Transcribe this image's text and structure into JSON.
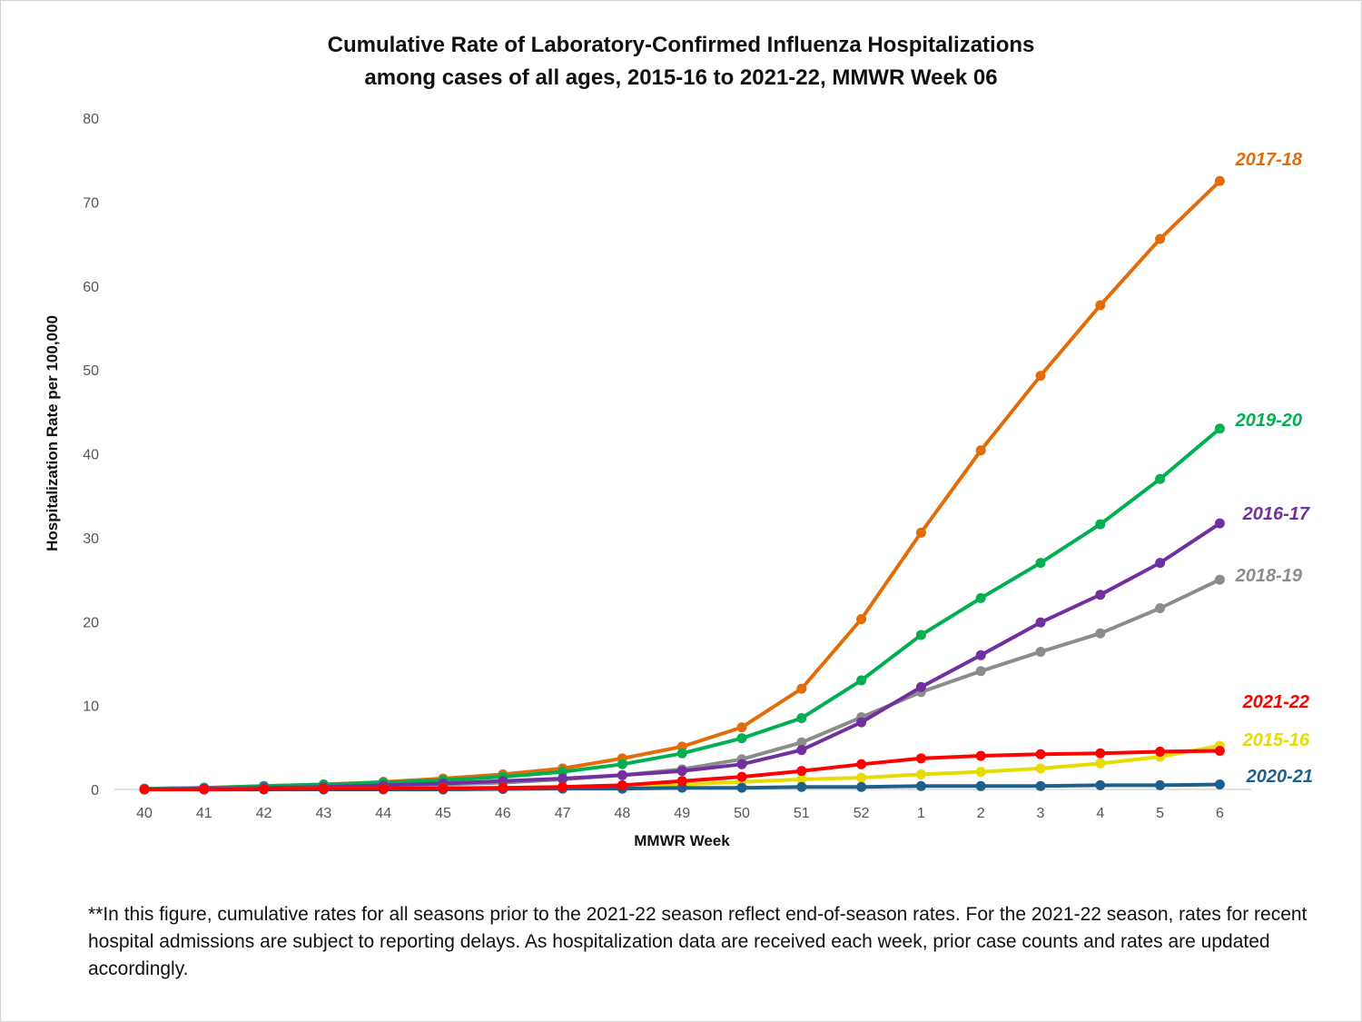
{
  "title_line1": "Cumulative Rate of Laboratory-Confirmed Influenza Hospitalizations",
  "title_line2": "among cases of all ages, 2015-16 to 2021-22, MMWR  Week 06",
  "footnote": "**In this figure, cumulative rates for all seasons prior to the 2021-22 season reflect end-of-season rates. For the 2021-22 season, rates for recent hospital admissions are subject to reporting delays. As hospitalization data are received each week, prior case counts and rates are updated accordingly.",
  "chart_data": {
    "type": "line",
    "title": "Cumulative Rate of Laboratory-Confirmed Influenza Hospitalizations among cases of all ages, 2015-16 to 2021-22, MMWR  Week 06",
    "xlabel": "MMWR Week",
    "ylabel": "Hospitalization  Rate per 100,000",
    "ylim": [
      0,
      80
    ],
    "yticks": [
      "0",
      "10",
      "20",
      "30",
      "40",
      "50",
      "60",
      "70",
      "80"
    ],
    "grid": false,
    "legend": "inline labels at line ends",
    "categories": [
      "40",
      "41",
      "42",
      "43",
      "44",
      "45",
      "46",
      "47",
      "48",
      "49",
      "50",
      "51",
      "52",
      "1",
      "2",
      "3",
      "4",
      "5",
      "6"
    ],
    "series": [
      {
        "name": "2015-16",
        "color": "#e6dc00",
        "values": [
          0,
          0,
          0.05,
          0.1,
          0.1,
          0.15,
          0.2,
          0.3,
          0.4,
          0.6,
          0.9,
          1.2,
          1.4,
          1.8,
          2.1,
          2.5,
          3.1,
          3.9,
          5.2
        ]
      },
      {
        "name": "2016-17",
        "color": "#7030a0",
        "values": [
          0,
          0.1,
          0.2,
          0.3,
          0.5,
          0.7,
          1.0,
          1.3,
          1.7,
          2.2,
          3.0,
          4.7,
          8.0,
          12.2,
          16.0,
          19.9,
          23.2,
          27.0,
          31.7
        ]
      },
      {
        "name": "2017-18",
        "color": "#e36c09",
        "values": [
          0.1,
          0.2,
          0.4,
          0.6,
          0.9,
          1.3,
          1.8,
          2.5,
          3.7,
          5.1,
          7.4,
          12.0,
          20.3,
          30.6,
          40.4,
          49.3,
          57.7,
          65.6,
          72.5
        ]
      },
      {
        "name": "2018-19",
        "color": "#8c8c8c",
        "values": [
          0.05,
          0.1,
          0.2,
          0.3,
          0.4,
          0.6,
          0.8,
          1.2,
          1.7,
          2.4,
          3.6,
          5.6,
          8.6,
          11.6,
          14.1,
          16.4,
          18.6,
          21.6,
          25.0
        ]
      },
      {
        "name": "2019-20",
        "color": "#00b050",
        "values": [
          0.1,
          0.2,
          0.4,
          0.6,
          0.8,
          1.1,
          1.5,
          2.1,
          3.0,
          4.3,
          6.1,
          8.5,
          13.0,
          18.4,
          22.8,
          27.0,
          31.6,
          37.0,
          43.0
        ]
      },
      {
        "name": "2020-21",
        "color": "#1f5f8b",
        "values": [
          0,
          0,
          0,
          0,
          0,
          0,
          0.05,
          0.1,
          0.1,
          0.2,
          0.2,
          0.3,
          0.3,
          0.4,
          0.4,
          0.4,
          0.5,
          0.5,
          0.6
        ]
      },
      {
        "name": "2021-22",
        "color": "#ff0000",
        "values": [
          0,
          0,
          0.05,
          0.1,
          0.1,
          0.15,
          0.2,
          0.3,
          0.5,
          1.0,
          1.5,
          2.2,
          3.0,
          3.7,
          4.0,
          4.2,
          4.3,
          4.5,
          4.6
        ]
      }
    ]
  }
}
